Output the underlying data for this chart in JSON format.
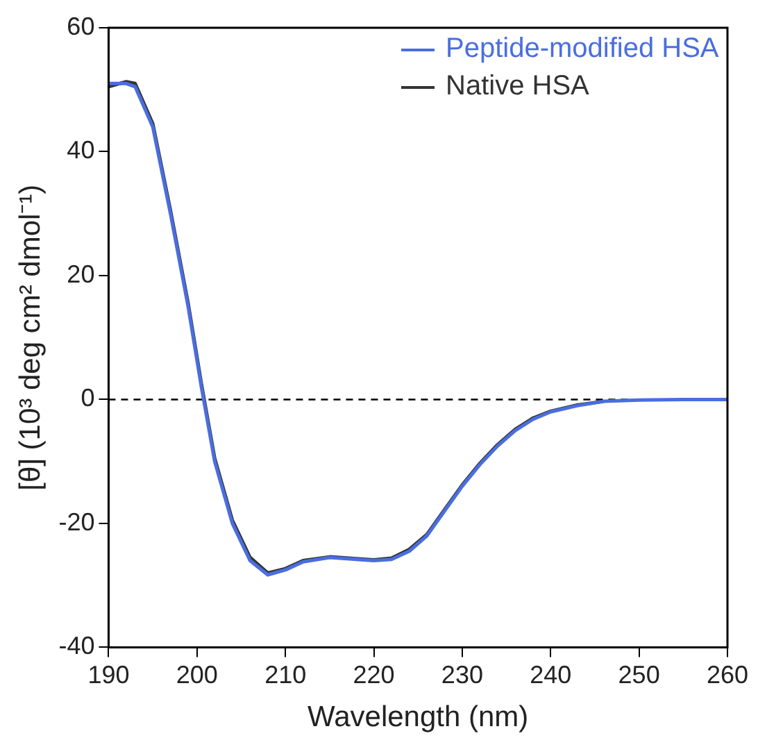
{
  "chart_data": {
    "type": "line",
    "xlabel": "Wavelength (nm)",
    "ylabel": "[θ] (10³ deg cm² dmol⁻¹)",
    "xlim": [
      190,
      260
    ],
    "xticks": [
      190,
      200,
      210,
      220,
      230,
      240,
      250,
      260
    ],
    "ylim": [
      -40,
      60
    ],
    "yticks": [
      -40,
      -20,
      0,
      20,
      40,
      60
    ],
    "grid": false,
    "legend": "top right",
    "marker": "none",
    "line_style": "solid",
    "ref_lines": [
      {
        "axis": "y",
        "value": 0,
        "color": "#000000",
        "line_style": "dashed"
      }
    ],
    "x": [
      190,
      192,
      193,
      195,
      197,
      199,
      200.5,
      202,
      204,
      206,
      208,
      210,
      212,
      215,
      218,
      220,
      222,
      224,
      226,
      228,
      230,
      232,
      234,
      236,
      238,
      240,
      243,
      246,
      250,
      255,
      260
    ],
    "series": [
      {
        "name": "Peptide-modified HSA",
        "color": "#4a6ee0",
        "values": [
          51,
          51,
          50.5,
          44,
          30,
          15,
          2,
          -10,
          -20,
          -26,
          -28.3,
          -27.5,
          -26.2,
          -25.5,
          -25.8,
          -26,
          -25.8,
          -24.5,
          -22,
          -18,
          -14,
          -10.5,
          -7.5,
          -5,
          -3.2,
          -2,
          -1,
          -0.3,
          -0.1,
          0,
          0
        ]
      },
      {
        "name": "Native HSA",
        "color": "#333333",
        "values": [
          50.5,
          51.3,
          51,
          44.5,
          30.5,
          15.5,
          2.5,
          -9.5,
          -19.5,
          -25.5,
          -28,
          -27.3,
          -26,
          -25.4,
          -25.7,
          -25.9,
          -25.6,
          -24.2,
          -21.8,
          -17.8,
          -13.8,
          -10.3,
          -7.3,
          -4.8,
          -3,
          -1.9,
          -0.9,
          -0.3,
          null,
          0,
          0
        ]
      }
    ]
  }
}
